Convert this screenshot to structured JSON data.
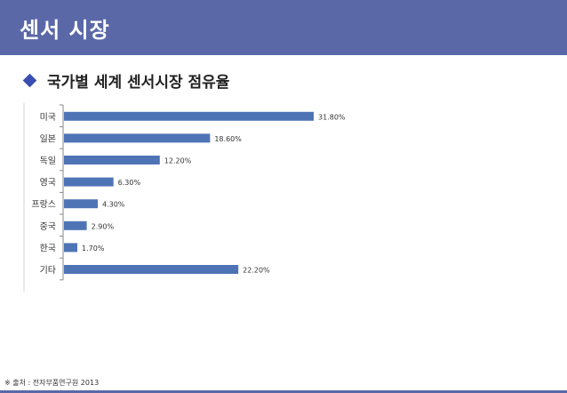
{
  "slide": {
    "title": "센서 시장",
    "subheading": "국가별 세계 센서시장 점유율",
    "source": "※ 출처 : 전자부품연구원 2013",
    "accent_color": "#5a68a8",
    "bullet_icon": "diamond-icon"
  },
  "chart_data": {
    "type": "bar",
    "orientation": "horizontal",
    "categories": [
      "미국",
      "일본",
      "독일",
      "영국",
      "프랑스",
      "중국",
      "한국",
      "기타"
    ],
    "values": [
      31.8,
      18.6,
      12.2,
      6.3,
      4.3,
      2.9,
      1.7,
      22.2
    ],
    "data_labels": [
      "31.80%",
      "18.60%",
      "12.20%",
      "6.30%",
      "4.30%",
      "2.90%",
      "1.70%",
      "22.20%"
    ],
    "title": "",
    "xlabel": "",
    "ylabel": "",
    "xlim": [
      0,
      31.8
    ],
    "bar_color": "#4f74b6",
    "grid": false,
    "legend": "none"
  }
}
